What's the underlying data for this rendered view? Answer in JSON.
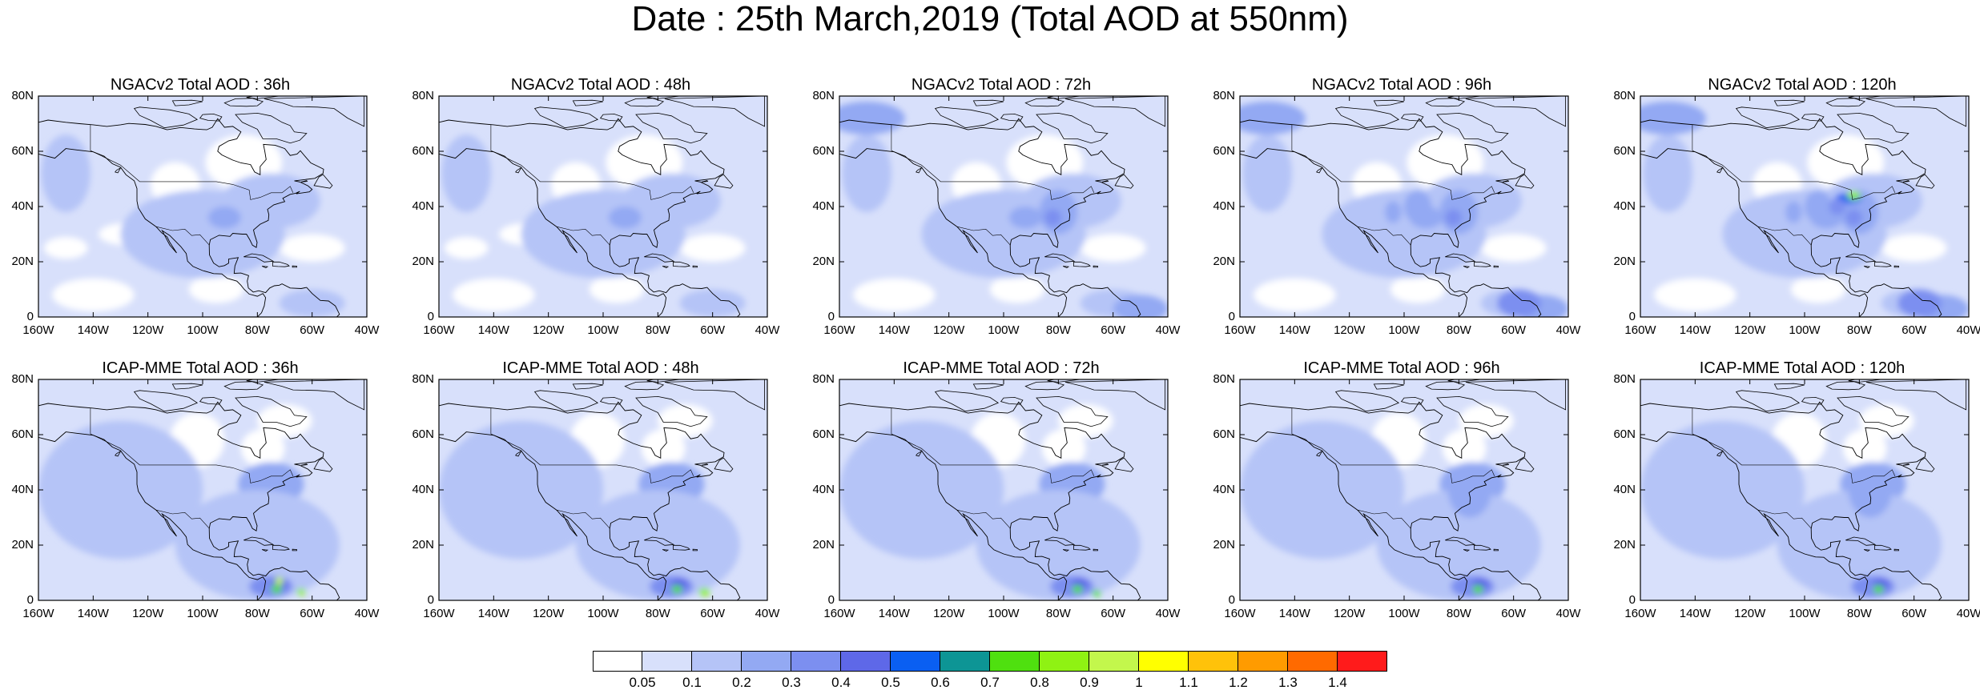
{
  "title": "Date : 25th March,2019 (Total AOD at 550nm)",
  "axes": {
    "y_ticks": [
      "80N",
      "60N",
      "40N",
      "20N",
      "0"
    ],
    "x_ticks": [
      "160W",
      "140W",
      "120W",
      "100W",
      "80W",
      "60W",
      "40W"
    ],
    "lon_range": [
      -160,
      -40
    ],
    "lat_range": [
      0,
      80
    ]
  },
  "panels": [
    {
      "title": "NGACv2 Total AOD : 36h",
      "model": "NGACv2",
      "lead_hours": 36
    },
    {
      "title": "NGACv2 Total AOD : 48h",
      "model": "NGACv2",
      "lead_hours": 48
    },
    {
      "title": "NGACv2 Total AOD : 72h",
      "model": "NGACv2",
      "lead_hours": 72
    },
    {
      "title": "NGACv2 Total AOD : 96h",
      "model": "NGACv2",
      "lead_hours": 96
    },
    {
      "title": "NGACv2 Total AOD : 120h",
      "model": "NGACv2",
      "lead_hours": 120
    },
    {
      "title": "ICAP-MME Total AOD : 36h",
      "model": "ICAP-MME",
      "lead_hours": 36
    },
    {
      "title": "ICAP-MME Total AOD : 48h",
      "model": "ICAP-MME",
      "lead_hours": 48
    },
    {
      "title": "ICAP-MME Total AOD : 72h",
      "model": "ICAP-MME",
      "lead_hours": 72
    },
    {
      "title": "ICAP-MME Total AOD : 96h",
      "model": "ICAP-MME",
      "lead_hours": 96
    },
    {
      "title": "ICAP-MME Total AOD : 120h",
      "model": "ICAP-MME",
      "lead_hours": 120
    }
  ],
  "colorbar": {
    "labels": [
      "0.05",
      "0.1",
      "0.2",
      "0.3",
      "0.4",
      "0.5",
      "0.6",
      "0.7",
      "0.8",
      "0.9",
      "1",
      "1.1",
      "1.2",
      "1.3",
      "1.4"
    ],
    "colors": [
      "#ffffff",
      "#d8e0fb",
      "#b5c4f7",
      "#93a9f3",
      "#7c8ff0",
      "#5e68e8",
      "#0a5ff2",
      "#0d9595",
      "#4fe00f",
      "#8ff213",
      "#c3f74c",
      "#ffff00",
      "#ffc20a",
      "#ff9b00",
      "#ff6a00",
      "#ff1b1b"
    ]
  }
}
